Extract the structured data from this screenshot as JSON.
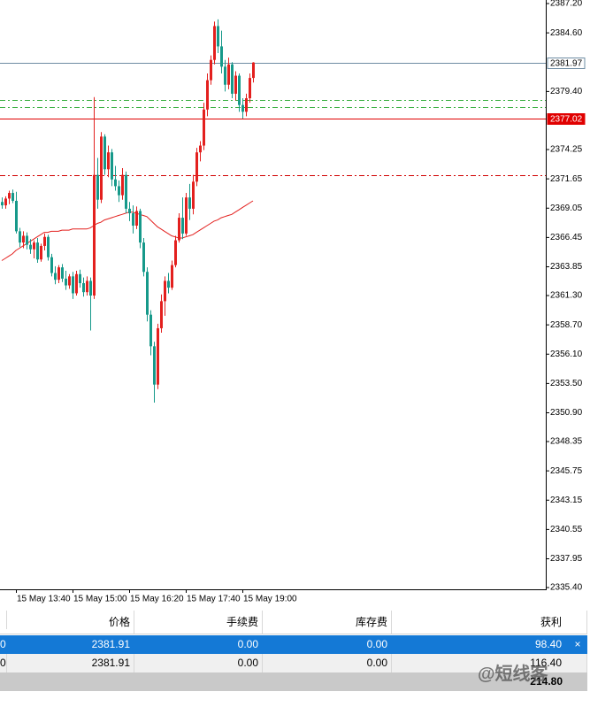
{
  "chart_data": {
    "type": "candlestick",
    "ylim": [
      2335.4,
      2387.2
    ],
    "yticks": [
      {
        "value": 2387.2,
        "label": "2387.20"
      },
      {
        "value": 2384.6,
        "label": "2384.60"
      },
      {
        "value": 2379.4,
        "label": "2379.40"
      },
      {
        "value": 2374.25,
        "label": "2374.25"
      },
      {
        "value": 2371.65,
        "label": "2371.65"
      },
      {
        "value": 2369.05,
        "label": "2369.05"
      },
      {
        "value": 2366.45,
        "label": "2366.45"
      },
      {
        "value": 2363.85,
        "label": "2363.85"
      },
      {
        "value": 2361.3,
        "label": "2361.30"
      },
      {
        "value": 2358.7,
        "label": "2358.70"
      },
      {
        "value": 2356.1,
        "label": "2356.10"
      },
      {
        "value": 2353.5,
        "label": "2353.50"
      },
      {
        "value": 2350.9,
        "label": "2350.90"
      },
      {
        "value": 2348.35,
        "label": "2348.35"
      },
      {
        "value": 2345.75,
        "label": "2345.75"
      },
      {
        "value": 2343.15,
        "label": "2343.15"
      },
      {
        "value": 2340.55,
        "label": "2340.55"
      },
      {
        "value": 2337.95,
        "label": "2337.95"
      },
      {
        "value": 2335.4,
        "label": "2335.40"
      }
    ],
    "categories": [
      null,
      null,
      null,
      null,
      "15 May 13:40",
      null,
      null,
      null,
      null,
      null,
      null,
      null,
      null,
      null,
      null,
      null,
      null,
      null,
      null,
      null,
      "15 May 15:00",
      null,
      null,
      null,
      null,
      null,
      null,
      null,
      null,
      null,
      null,
      null,
      null,
      null,
      null,
      null,
      "15 May 16:20",
      null,
      null,
      null,
      null,
      null,
      null,
      null,
      null,
      null,
      null,
      null,
      null,
      null,
      null,
      null,
      "15 May 17:40",
      null,
      null,
      null,
      null,
      null,
      null,
      null,
      null,
      null,
      null,
      null,
      null,
      null,
      null,
      null,
      "15 May 19:00",
      null,
      null,
      null
    ],
    "up_color": "#e3201e",
    "down_color": "#16998a",
    "candles": [
      [
        2369.6,
        2370.0,
        2369.0,
        2369.3
      ],
      [
        2369.3,
        2370.1,
        2369.0,
        2369.9
      ],
      [
        2369.9,
        2370.6,
        2369.4,
        2370.4
      ],
      [
        2370.4,
        2370.7,
        2369.5,
        2369.7
      ],
      [
        2369.7,
        2370.5,
        2366.8,
        2367.0
      ],
      [
        2367.0,
        2367.3,
        2365.6,
        2366.0
      ],
      [
        2366.0,
        2367.0,
        2365.5,
        2366.6
      ],
      [
        2366.6,
        2366.9,
        2365.4,
        2365.8
      ],
      [
        2365.8,
        2366.3,
        2365.0,
        2365.4
      ],
      [
        2365.4,
        2366.2,
        2364.6,
        2366.0
      ],
      [
        2366.0,
        2366.4,
        2364.2,
        2364.5
      ],
      [
        2364.5,
        2365.9,
        2364.3,
        2365.7
      ],
      [
        2365.7,
        2366.8,
        2365.3,
        2366.5
      ],
      [
        2366.5,
        2366.7,
        2364.4,
        2364.7
      ],
      [
        2364.7,
        2365.0,
        2363.0,
        2363.3
      ],
      [
        2363.3,
        2363.9,
        2362.3,
        2362.7
      ],
      [
        2362.7,
        2364.0,
        2362.4,
        2363.8
      ],
      [
        2363.8,
        2364.1,
        2362.5,
        2362.8
      ],
      [
        2362.8,
        2363.5,
        2361.8,
        2362.2
      ],
      [
        2362.2,
        2363.2,
        2361.9,
        2363.0
      ],
      [
        2363.0,
        2363.4,
        2361.0,
        2361.5
      ],
      [
        2361.5,
        2363.5,
        2361.3,
        2363.2
      ],
      [
        2363.2,
        2363.6,
        2362.0,
        2362.4
      ],
      [
        2362.4,
        2362.9,
        2361.2,
        2361.6
      ],
      [
        2361.6,
        2363.0,
        2361.3,
        2362.6
      ],
      [
        2362.6,
        2362.9,
        2358.2,
        2361.3
      ],
      [
        2361.3,
        2378.9,
        2361.0,
        2372.0
      ],
      [
        2372.0,
        2373.5,
        2369.0,
        2369.8
      ],
      [
        2369.8,
        2375.8,
        2369.5,
        2375.4
      ],
      [
        2375.4,
        2375.6,
        2372.0,
        2372.5
      ],
      [
        2372.5,
        2374.6,
        2371.8,
        2374.0
      ],
      [
        2374.0,
        2374.3,
        2371.0,
        2371.6
      ],
      [
        2371.6,
        2372.8,
        2370.6,
        2371.0
      ],
      [
        2371.0,
        2371.5,
        2369.6,
        2370.2
      ],
      [
        2370.2,
        2372.6,
        2369.8,
        2372.0
      ],
      [
        2372.0,
        2372.3,
        2368.6,
        2369.0
      ],
      [
        2369.0,
        2369.6,
        2367.9,
        2368.6
      ],
      [
        2368.6,
        2369.3,
        2366.8,
        2367.5
      ],
      [
        2367.5,
        2369.2,
        2367.2,
        2368.8
      ],
      [
        2368.8,
        2369.0,
        2365.5,
        2366.0
      ],
      [
        2366.0,
        2366.4,
        2363.0,
        2363.4
      ],
      [
        2363.4,
        2363.8,
        2359.0,
        2359.6
      ],
      [
        2359.6,
        2360.0,
        2356.0,
        2356.8
      ],
      [
        2356.8,
        2357.2,
        2351.8,
        2353.4
      ],
      [
        2353.4,
        2358.8,
        2353.0,
        2358.4
      ],
      [
        2358.4,
        2361.4,
        2358.0,
        2360.8
      ],
      [
        2360.8,
        2363.0,
        2359.5,
        2362.6
      ],
      [
        2362.6,
        2363.3,
        2361.5,
        2362.0
      ],
      [
        2362.0,
        2364.4,
        2361.8,
        2364.0
      ],
      [
        2364.0,
        2366.6,
        2363.8,
        2366.2
      ],
      [
        2366.2,
        2368.6,
        2366.0,
        2368.2
      ],
      [
        2368.2,
        2370.0,
        2366.3,
        2366.8
      ],
      [
        2366.8,
        2370.4,
        2366.6,
        2370.0
      ],
      [
        2370.0,
        2371.2,
        2368.0,
        2369.0
      ],
      [
        2369.0,
        2372.0,
        2368.5,
        2371.4
      ],
      [
        2371.4,
        2374.4,
        2371.0,
        2374.0
      ],
      [
        2374.0,
        2375.0,
        2373.2,
        2374.6
      ],
      [
        2374.6,
        2378.4,
        2374.2,
        2377.8
      ],
      [
        2377.8,
        2381.0,
        2377.2,
        2380.4
      ],
      [
        2380.4,
        2382.6,
        2380.0,
        2382.2
      ],
      [
        2382.2,
        2385.6,
        2381.8,
        2385.2
      ],
      [
        2385.2,
        2385.8,
        2382.8,
        2383.4
      ],
      [
        2383.4,
        2384.8,
        2381.0,
        2381.6
      ],
      [
        2381.6,
        2382.2,
        2379.4,
        2380.0
      ],
      [
        2380.0,
        2382.4,
        2379.6,
        2381.8
      ],
      [
        2381.8,
        2382.0,
        2378.8,
        2379.2
      ],
      [
        2379.2,
        2381.2,
        2378.6,
        2380.8
      ],
      [
        2380.8,
        2381.0,
        2377.6,
        2378.2
      ],
      [
        2378.2,
        2378.8,
        2377.0,
        2377.6
      ],
      [
        2377.6,
        2379.2,
        2377.2,
        2378.8
      ],
      [
        2378.8,
        2381.0,
        2378.4,
        2380.6
      ],
      [
        2380.6,
        2382.0,
        2380.2,
        2381.97
      ]
    ],
    "ma": {
      "color": "#e3201e",
      "values": [
        2364.4,
        2364.6,
        2364.8,
        2365.0,
        2365.3,
        2365.5,
        2365.7,
        2365.9,
        2366.1,
        2366.3,
        2366.5,
        2366.7,
        2366.9,
        2366.9,
        2367.0,
        2367.0,
        2367.0,
        2367.1,
        2367.1,
        2367.1,
        2367.2,
        2367.2,
        2367.2,
        2367.2,
        2367.2,
        2367.3,
        2367.5,
        2367.7,
        2367.8,
        2368.0,
        2368.1,
        2368.2,
        2368.3,
        2368.4,
        2368.5,
        2368.6,
        2368.7,
        2368.7,
        2368.6,
        2368.5,
        2368.4,
        2368.3,
        2368.0,
        2367.7,
        2367.4,
        2367.2,
        2367.0,
        2366.8,
        2366.6,
        2366.5,
        2366.4,
        2366.4,
        2366.5,
        2366.6,
        2366.7,
        2366.9,
        2367.1,
        2367.3,
        2367.5,
        2367.7,
        2367.9,
        2368.0,
        2368.2,
        2368.3,
        2368.4,
        2368.5,
        2368.7,
        2368.9,
        2369.1,
        2369.3,
        2369.5,
        2369.7
      ]
    },
    "lines": [
      {
        "value": 2381.97,
        "color": "#6e8ca3",
        "style": "solid",
        "labeled": true,
        "label_bg": "#ffffff",
        "label_fg": "#000000"
      },
      {
        "value": 2377.02,
        "color": "#e00000",
        "style": "solid",
        "labeled": true,
        "label_bg": "#e00000",
        "label_fg": "#ffffff"
      },
      {
        "value": 2378.65,
        "color": "#3cb043",
        "style": "dashdot",
        "labeled": false
      },
      {
        "value": 2378.02,
        "color": "#3cb043",
        "style": "dashdot",
        "labeled": false
      },
      {
        "value": 2372.0,
        "color": "#d00000",
        "style": "dashdot",
        "labeled": false
      }
    ]
  },
  "table": {
    "headers": [
      "价格",
      "手续费",
      "库存费",
      "获利"
    ],
    "rows": [
      [
        "0",
        "2381.91",
        "0.00",
        "0.00",
        "98.40"
      ],
      [
        "0",
        "2381.91",
        "0.00",
        "0.00",
        "116.40"
      ]
    ],
    "close_icon": "×",
    "total": "214.80"
  },
  "watermark": "@短线客"
}
